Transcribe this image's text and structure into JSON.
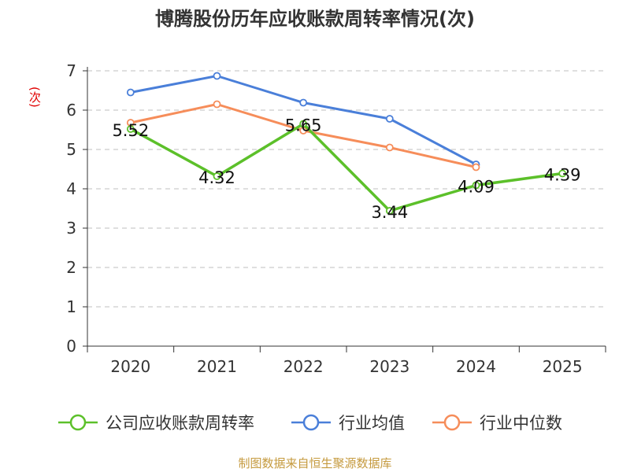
{
  "chart_data": {
    "type": "line",
    "title": "博腾股份历年应收账款周转率情况(次)",
    "ylabel": "(次)",
    "xlabel": "",
    "categories": [
      "2020",
      "2021",
      "2022",
      "2023",
      "2024",
      "2025"
    ],
    "ylim": [
      0,
      7
    ],
    "yticks": [
      0,
      1,
      2,
      3,
      4,
      5,
      6,
      7
    ],
    "grid": true,
    "legend_position": "bottom",
    "series": [
      {
        "name": "公司应收账款周转率",
        "color": "#5cc02a",
        "values": [
          5.52,
          4.32,
          5.65,
          3.44,
          4.09,
          4.39
        ],
        "labels": [
          "5.52",
          "4.32",
          "5.65",
          "3.44",
          "4.09",
          "4.39"
        ]
      },
      {
        "name": "行业均值",
        "color": "#4a7fd9",
        "values": [
          6.45,
          6.87,
          6.19,
          5.78,
          4.62,
          null
        ]
      },
      {
        "name": "行业中位数",
        "color": "#f68d5a",
        "values": [
          5.68,
          6.15,
          5.48,
          5.05,
          4.55,
          null
        ]
      }
    ]
  },
  "source_text": "制图数据来自恒生聚源数据库"
}
